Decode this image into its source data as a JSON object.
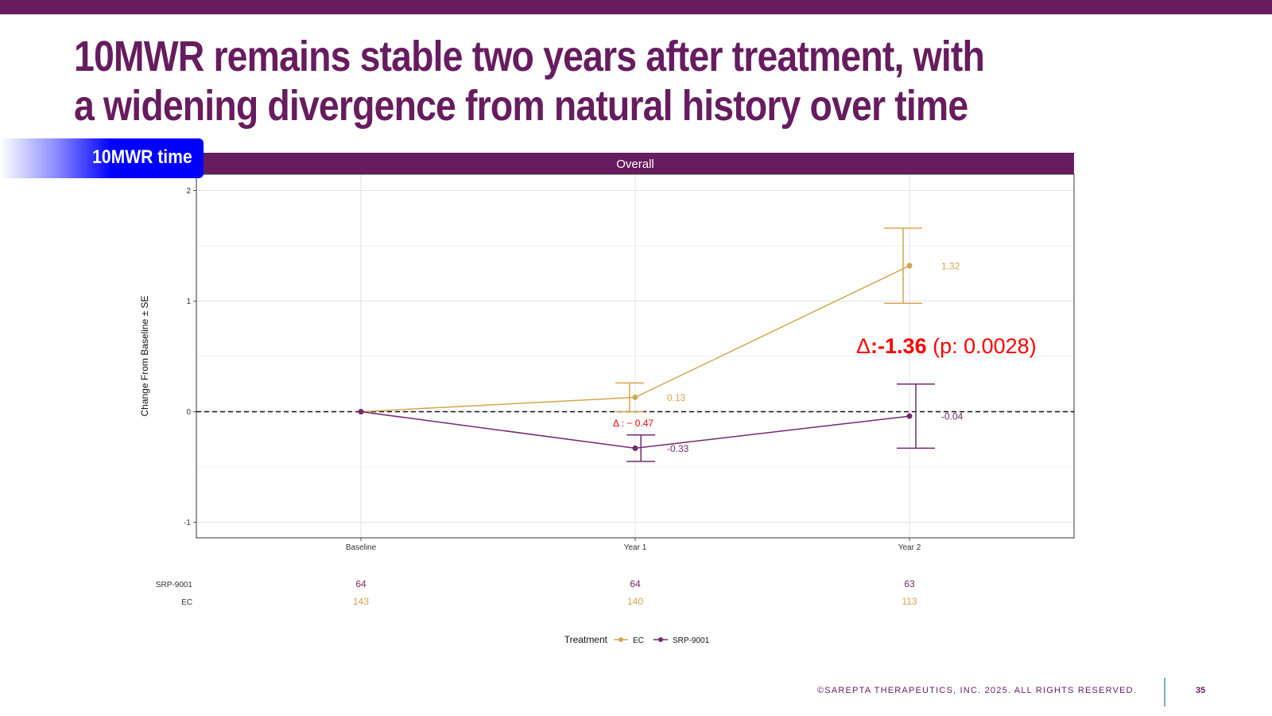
{
  "slide": {
    "title_line1": "10MWR remains stable two years after treatment, with",
    "title_line2": "a widening divergence from natural history over time",
    "metric_tab": "10MWR time",
    "footer": "©SAREPTA THERAPEUTICS, INC. 2025.  ALL RIGHTS RESERVED.",
    "page_number": "35"
  },
  "colors": {
    "brand_purple": "#671C5F",
    "tab_blue": "#0000FF",
    "ec_gold": "#D4A64F",
    "srp_purple": "#722A6E",
    "delta_red": "#FF0000"
  },
  "chart_data": {
    "type": "line",
    "panel_title": "Overall",
    "ylabel": "Change From Baseline ± SE",
    "xlabel": "",
    "categories": [
      "Baseline",
      "Year 1",
      "Year 2"
    ],
    "ylim": [
      -1.15,
      2.0
    ],
    "yticks": [
      -1,
      0,
      1,
      2
    ],
    "grid": true,
    "reference_line": 0,
    "series": [
      {
        "name": "EC",
        "color": "#D4A64F",
        "values": [
          0,
          0.13,
          1.32
        ],
        "se": [
          0,
          0.13,
          0.34
        ],
        "value_labels": [
          "",
          "0.13",
          "1.32"
        ],
        "n": [
          "143",
          "140",
          "113"
        ]
      },
      {
        "name": "SRP-9001",
        "color": "#722A6E",
        "values": [
          0,
          -0.33,
          -0.04
        ],
        "se": [
          0,
          0.12,
          0.29
        ],
        "value_labels": [
          "",
          "-0.33",
          "-0.04"
        ],
        "n": [
          "64",
          "64",
          "63"
        ]
      }
    ],
    "annotations": {
      "year1_delta": "Δ : − 0.47",
      "year2_delta_symbol": "Δ",
      "year2_delta_value": ":-1.36",
      "year2_p": " (p: 0.0028)"
    },
    "risk_table_labels": [
      "SRP-9001",
      "EC"
    ],
    "legend": {
      "title": "Treatment",
      "position": "bottom",
      "entries": [
        "EC",
        "SRP-9001"
      ]
    }
  }
}
